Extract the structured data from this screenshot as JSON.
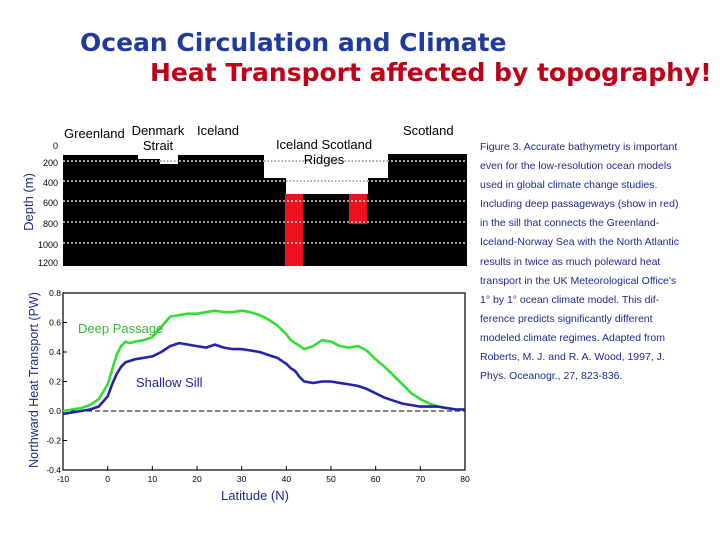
{
  "title": {
    "line1": "Ocean Circulation and Climate",
    "line2": "Heat Transport affected by topography!"
  },
  "section": {
    "regions": {
      "greenland": "Greenland",
      "denmark_strait": [
        "Denmark",
        "Strait"
      ],
      "iceland": "Iceland",
      "iceland_scotland_ridges": [
        "Iceland Scotland",
        "Ridges"
      ],
      "scotland": "Scotland"
    },
    "ylabel": "Depth (m)",
    "depth_ticks": [
      "0",
      "200",
      "400",
      "600",
      "800",
      "1000",
      "1200"
    ]
  },
  "chart_data": {
    "type": "line",
    "title": "",
    "xlabel": "Latitude (N)",
    "ylabel": "Northward Heat Transport (PW)",
    "xlim": [
      -10,
      80
    ],
    "ylim": [
      -0.4,
      0.8
    ],
    "x_ticks": [
      "-10",
      "0",
      "10",
      "20",
      "30",
      "40",
      "50",
      "60",
      "70",
      "80"
    ],
    "y_ticks": [
      "0.8",
      "0.6",
      "0.4",
      "0.2",
      "0.0",
      "-0.2",
      "-0.4"
    ],
    "series": [
      {
        "name": "Deep Passage",
        "color": "#33dd33",
        "x": [
          -10,
          -8,
          -6,
          -4,
          -2,
          0,
          1,
          2,
          3,
          4,
          5,
          6,
          8,
          10,
          12,
          14,
          16,
          18,
          20,
          22,
          24,
          26,
          28,
          30,
          32,
          34,
          36,
          38,
          40,
          41,
          42,
          43,
          44,
          46,
          48,
          50,
          52,
          54,
          56,
          58,
          60,
          62,
          64,
          66,
          68,
          70,
          72,
          74,
          76,
          78,
          80
        ],
        "values": [
          0.0,
          0.01,
          0.02,
          0.04,
          0.08,
          0.18,
          0.28,
          0.38,
          0.44,
          0.47,
          0.46,
          0.47,
          0.48,
          0.5,
          0.57,
          0.64,
          0.65,
          0.66,
          0.66,
          0.67,
          0.68,
          0.67,
          0.67,
          0.68,
          0.67,
          0.65,
          0.62,
          0.58,
          0.52,
          0.48,
          0.46,
          0.44,
          0.42,
          0.44,
          0.48,
          0.47,
          0.44,
          0.43,
          0.44,
          0.41,
          0.35,
          0.3,
          0.24,
          0.18,
          0.12,
          0.08,
          0.05,
          0.03,
          0.02,
          0.01,
          0.01
        ]
      },
      {
        "name": "Shallow Sill",
        "color": "#2222aa",
        "x": [
          -10,
          -8,
          -6,
          -4,
          -2,
          0,
          1,
          2,
          3,
          4,
          5,
          6,
          8,
          10,
          12,
          14,
          16,
          18,
          20,
          22,
          24,
          26,
          28,
          30,
          32,
          34,
          36,
          38,
          40,
          41,
          42,
          43,
          44,
          46,
          48,
          50,
          52,
          54,
          56,
          58,
          60,
          62,
          64,
          66,
          68,
          70,
          72,
          74,
          76,
          78,
          80
        ],
        "values": [
          -0.02,
          -0.01,
          0.0,
          0.01,
          0.03,
          0.1,
          0.18,
          0.25,
          0.3,
          0.33,
          0.34,
          0.35,
          0.36,
          0.37,
          0.4,
          0.44,
          0.46,
          0.45,
          0.44,
          0.43,
          0.45,
          0.43,
          0.42,
          0.42,
          0.41,
          0.4,
          0.38,
          0.36,
          0.32,
          0.29,
          0.27,
          0.23,
          0.2,
          0.19,
          0.2,
          0.2,
          0.19,
          0.18,
          0.17,
          0.15,
          0.12,
          0.09,
          0.07,
          0.05,
          0.04,
          0.03,
          0.03,
          0.03,
          0.02,
          0.01,
          0.01
        ]
      }
    ]
  },
  "caption": {
    "lines": [
      "Figure 3. Accurate bathymetry is important",
      "even for the low-resolution ocean models",
      "used in global climate change studies.",
      "Including deep passageways (show in red)",
      "in the sill that connects the Greenland-",
      "Iceland-Norway Sea with the North Atlantic",
      "results in twice as much poleward heat",
      "transport in the UK Meteorological Office's",
      "1° by 1° ocean climate model. This dif-",
      "ference predicts significantly different",
      "modeled climate regimes. Adapted from",
      "Roberts, M. J. and R. A. Wood, 1997, J.",
      "Phys. Oceanogr., 27, 823-836."
    ]
  }
}
